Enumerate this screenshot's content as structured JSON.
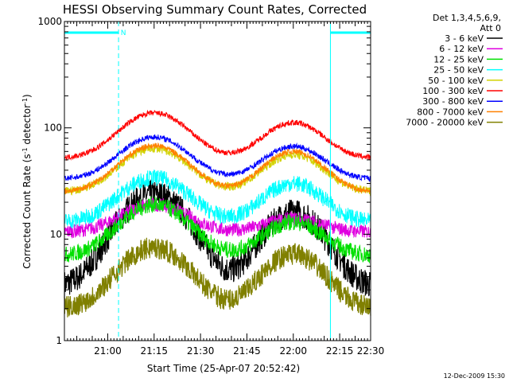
{
  "chart_data": {
    "type": "line",
    "title": "HESSI Observing Summary Count Rates, Corrected",
    "xlabel": "Start Time (25-Apr-07 20:52:42)",
    "ylabel_main": "Corrected Count Rate (s",
    "ylabel_sup1": "-1",
    "ylabel_mid": " detector",
    "ylabel_sup2": "-1",
    "ylabel_end": ")",
    "ylabel": "Corrected Count Rate (s^-1 detector^-1)",
    "y_scale": "log",
    "ylim": [
      1,
      1000
    ],
    "xlim_min": [
      -6,
      93
    ],
    "x_ticks": [
      {
        "min": 8,
        "label": "21:00"
      },
      {
        "min": 23,
        "label": "21:15"
      },
      {
        "min": 38,
        "label": "21:30"
      },
      {
        "min": 53,
        "label": "21:45"
      },
      {
        "min": 68,
        "label": "22:00"
      },
      {
        "min": 83,
        "label": "22:15"
      },
      {
        "min": 98,
        "label": "22:30"
      }
    ],
    "y_ticks": [
      {
        "value": 1,
        "label": "1"
      },
      {
        "value": 10,
        "label": "10"
      },
      {
        "value": 100,
        "label": "100"
      },
      {
        "value": 1000,
        "label": "1000"
      }
    ],
    "legend_header": [
      "Det 1,3,4,5,6,9,",
      "Att 0"
    ],
    "legend_position": "right",
    "night_marker_label": "N",
    "footer_date": "12-Dec-2009 15:30",
    "series": [
      {
        "name": "3 - 6 keV",
        "color": "#000000",
        "base": 3.2,
        "p1": 24,
        "p2": 16,
        "noise": 0.1
      },
      {
        "name": "6 - 12 keV",
        "color": "#e000e0",
        "base": 10.5,
        "p1": 19,
        "p2": 14,
        "noise": 0.05
      },
      {
        "name": "12 - 25 keV",
        "color": "#00e000",
        "base": 6.3,
        "p1": 19,
        "p2": 13,
        "noise": 0.06
      },
      {
        "name": "25 - 50 keV",
        "color": "#00ffff",
        "base": 13,
        "p1": 34,
        "p2": 30,
        "noise": 0.06
      },
      {
        "name": "50 - 100 keV",
        "color": "#d2d200",
        "base": 25,
        "p1": 64,
        "p2": 56,
        "noise": 0.03
      },
      {
        "name": "100 - 300 keV",
        "color": "#ff0000",
        "base": 52,
        "p1": 138,
        "p2": 112,
        "noise": 0.02
      },
      {
        "name": "300 - 800 keV",
        "color": "#0000ff",
        "base": 33,
        "p1": 82,
        "p2": 67,
        "noise": 0.02
      },
      {
        "name": "800 - 7000 keV",
        "color": "#ff8000",
        "base": 25,
        "p1": 68,
        "p2": 60,
        "noise": 0.02
      },
      {
        "name": "7000 - 20000 keV",
        "color": "#808000",
        "base": 2.0,
        "p1": 7.5,
        "p2": 6.5,
        "noise": 0.08
      }
    ],
    "saa_night_bars": [
      {
        "start_min": -6,
        "end_min": 11.5,
        "color": "#00ffff"
      },
      {
        "start_min": 80,
        "end_min": 93,
        "color": "#00ffff"
      }
    ],
    "boundary_lines": [
      {
        "min": -6,
        "style": "solid",
        "color": "#00ffff"
      },
      {
        "min": 11.5,
        "style": "dashed",
        "color": "#00ffff"
      },
      {
        "min": 80,
        "style": "solid",
        "color": "#00ffff"
      },
      {
        "min": 93,
        "style": "dashed",
        "color": "#00ffff"
      }
    ]
  }
}
